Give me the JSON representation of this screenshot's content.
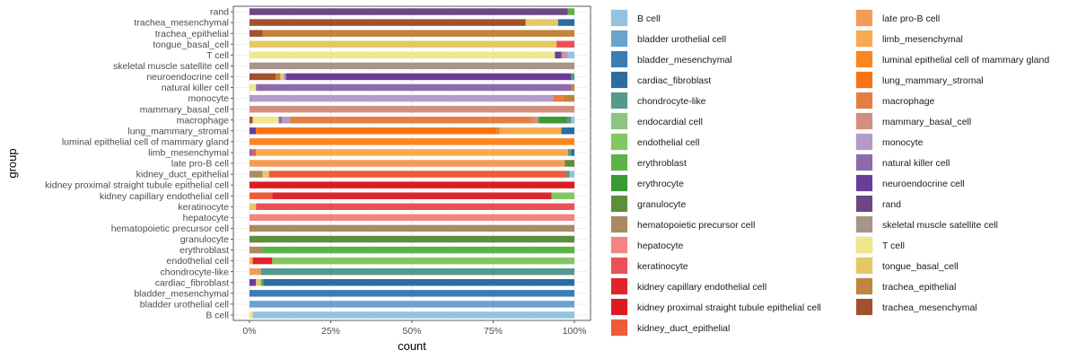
{
  "chart_data": {
    "type": "bar",
    "orientation": "horizontal",
    "stacked": "percent",
    "xlabel": "count",
    "ylabel": "group",
    "xlim": [
      0,
      1
    ],
    "x_ticks": [
      {
        "value": 0,
        "label": "0%"
      },
      {
        "value": 0.25,
        "label": "25%"
      },
      {
        "value": 0.5,
        "label": "50%"
      },
      {
        "value": 0.75,
        "label": "75%"
      },
      {
        "value": 1,
        "label": "100%"
      }
    ],
    "grid": true,
    "legend_position": "right",
    "categories": [
      "B cell",
      "bladder urothelial cell",
      "bladder_mesenchymal",
      "cardiac_fibroblast",
      "chondrocyte-like",
      "endothelial cell",
      "erythroblast",
      "granulocyte",
      "hematopoietic precursor cell",
      "hepatocyte",
      "keratinocyte",
      "kidney capillary endothelial cell",
      "kidney proximal straight tubule epithelial cell",
      "kidney_duct_epithelial",
      "late pro-B cell",
      "limb_mesenchymal",
      "luminal epithelial cell of mammary gland",
      "lung_mammary_stromal",
      "macrophage",
      "mammary_basal_cell",
      "monocyte",
      "natural killer cell",
      "neuroendocrine cell",
      "skeletal muscle satellite cell",
      "T cell",
      "tongue_basal_cell",
      "trachea_epithelial",
      "trachea_mesenchymal",
      "rand"
    ],
    "legend": [
      {
        "name": "B cell",
        "color": "#92c4df"
      },
      {
        "name": "bladder urothelial cell",
        "color": "#6aa3cd"
      },
      {
        "name": "bladder_mesenchymal",
        "color": "#3a7db5"
      },
      {
        "name": "cardiac_fibroblast",
        "color": "#2b6da2"
      },
      {
        "name": "chondrocyte-like",
        "color": "#55998e"
      },
      {
        "name": "endocardial cell",
        "color": "#8bc57e"
      },
      {
        "name": "endothelial cell",
        "color": "#82c75f"
      },
      {
        "name": "erythroblast",
        "color": "#5bb347"
      },
      {
        "name": "erythrocyte",
        "color": "#3a9a31"
      },
      {
        "name": "granulocyte",
        "color": "#5e8d3d"
      },
      {
        "name": "hematopoietic precursor cell",
        "color": "#a98a61"
      },
      {
        "name": "hepatocyte",
        "color": "#f48482"
      },
      {
        "name": "keratinocyte",
        "color": "#ea5157"
      },
      {
        "name": "kidney capillary endothelial cell",
        "color": "#e0242c"
      },
      {
        "name": "kidney proximal straight tubule epithelial cell",
        "color": "#dd1c22"
      },
      {
        "name": "kidney_duct_epithelial",
        "color": "#ef5a3c"
      },
      {
        "name": "late pro-B cell",
        "color": "#f59b58"
      },
      {
        "name": "limb_mesenchymal",
        "color": "#fba94f"
      },
      {
        "name": "luminal epithelial cell of mammary gland",
        "color": "#fb8620"
      },
      {
        "name": "lung_mammary_stromal",
        "color": "#f97311"
      },
      {
        "name": "macrophage",
        "color": "#e57f3f"
      },
      {
        "name": "mammary_basal_cell",
        "color": "#d28f80"
      },
      {
        "name": "monocyte",
        "color": "#b39bc8"
      },
      {
        "name": "natural killer cell",
        "color": "#8f69ad"
      },
      {
        "name": "neuroendocrine cell",
        "color": "#6a3d9a"
      },
      {
        "name": "rand",
        "color": "#6c4785"
      },
      {
        "name": "skeletal muscle satellite cell",
        "color": "#a99489"
      },
      {
        "name": "T cell",
        "color": "#f0e68c"
      },
      {
        "name": "tongue_basal_cell",
        "color": "#e4c865"
      },
      {
        "name": "trachea_epithelial",
        "color": "#c1843e"
      },
      {
        "name": "trachea_mesenchymal",
        "color": "#a0522d"
      }
    ],
    "bars": [
      {
        "group": "B cell",
        "segments": [
          [
            "T cell",
            0.01
          ],
          [
            "B cell",
            0.99
          ]
        ]
      },
      {
        "group": "bladder urothelial cell",
        "segments": [
          [
            "bladder urothelial cell",
            1.0
          ]
        ]
      },
      {
        "group": "bladder_mesenchymal",
        "segments": [
          [
            "bladder_mesenchymal",
            1.0
          ]
        ]
      },
      {
        "group": "cardiac_fibroblast",
        "segments": [
          [
            "neuroendocrine cell",
            0.02
          ],
          [
            "tongue_basal_cell",
            0.015
          ],
          [
            "erythroblast",
            0.007
          ],
          [
            "cardiac_fibroblast",
            0.958
          ]
        ]
      },
      {
        "group": "chondrocyte-like",
        "segments": [
          [
            "late pro-B cell",
            0.035
          ],
          [
            "chondrocyte-like",
            0.965
          ]
        ]
      },
      {
        "group": "endothelial cell",
        "segments": [
          [
            "limb_mesenchymal",
            0.01
          ],
          [
            "kidney capillary endothelial cell",
            0.06
          ],
          [
            "endothelial cell",
            0.93
          ]
        ]
      },
      {
        "group": "erythroblast",
        "segments": [
          [
            "hematopoietic precursor cell",
            0.04
          ],
          [
            "erythroblast",
            0.96
          ]
        ]
      },
      {
        "group": "granulocyte",
        "segments": [
          [
            "granulocyte",
            1.0
          ]
        ]
      },
      {
        "group": "hematopoietic precursor cell",
        "segments": [
          [
            "hematopoietic precursor cell",
            1.0
          ]
        ]
      },
      {
        "group": "hepatocyte",
        "segments": [
          [
            "hepatocyte",
            1.0
          ]
        ]
      },
      {
        "group": "keratinocyte",
        "segments": [
          [
            "tongue_basal_cell",
            0.02
          ],
          [
            "keratinocyte",
            0.98
          ]
        ]
      },
      {
        "group": "kidney capillary endothelial cell",
        "segments": [
          [
            "kidney_duct_epithelial",
            0.07
          ],
          [
            "kidney capillary endothelial cell",
            0.86
          ],
          [
            "endothelial cell",
            0.07
          ]
        ]
      },
      {
        "group": "kidney proximal straight tubule epithelial cell",
        "segments": [
          [
            "kidney proximal straight tubule epithelial cell",
            1.0
          ]
        ]
      },
      {
        "group": "kidney_duct_epithelial",
        "segments": [
          [
            "hematopoietic precursor cell",
            0.04
          ],
          [
            "tongue_basal_cell",
            0.02
          ],
          [
            "kidney_duct_epithelial",
            0.915
          ],
          [
            "chondrocyte-like",
            0.01
          ],
          [
            "B cell",
            0.015
          ]
        ]
      },
      {
        "group": "late pro-B cell",
        "segments": [
          [
            "late pro-B cell",
            0.97
          ],
          [
            "granulocyte",
            0.03
          ]
        ]
      },
      {
        "group": "limb_mesenchymal",
        "segments": [
          [
            "natural killer cell",
            0.01
          ],
          [
            "kidney_duct_epithelial",
            0.01
          ],
          [
            "limb_mesenchymal",
            0.96
          ],
          [
            "chondrocyte-like",
            0.01
          ],
          [
            "cardiac_fibroblast",
            0.01
          ]
        ]
      },
      {
        "group": "luminal epithelial cell of mammary gland",
        "segments": [
          [
            "luminal epithelial cell of mammary gland",
            1.0
          ]
        ]
      },
      {
        "group": "lung_mammary_stromal",
        "segments": [
          [
            "neuroendocrine cell",
            0.02
          ],
          [
            "lung_mammary_stromal",
            0.74
          ],
          [
            "macrophage",
            0.01
          ],
          [
            "limb_mesenchymal",
            0.19
          ],
          [
            "cardiac_fibroblast",
            0.04
          ]
        ]
      },
      {
        "group": "macrophage",
        "segments": [
          [
            "trachea_mesenchymal",
            0.01
          ],
          [
            "T cell",
            0.08
          ],
          [
            "natural killer cell",
            0.01
          ],
          [
            "monocyte",
            0.025
          ],
          [
            "macrophage",
            0.745
          ],
          [
            "mammary_basal_cell",
            0.02
          ],
          [
            "erythrocyte",
            0.09
          ],
          [
            "chondrocyte-like",
            0.01
          ],
          [
            "B cell",
            0.01
          ]
        ]
      },
      {
        "group": "mammary_basal_cell",
        "segments": [
          [
            "mammary_basal_cell",
            1.0
          ]
        ]
      },
      {
        "group": "monocyte",
        "segments": [
          [
            "monocyte",
            0.935
          ],
          [
            "macrophage",
            0.03
          ],
          [
            "trachea_epithelial",
            0.035
          ]
        ]
      },
      {
        "group": "natural killer cell",
        "segments": [
          [
            "T cell",
            0.02
          ],
          [
            "natural killer cell",
            0.97
          ],
          [
            "trachea_epithelial",
            0.01
          ]
        ]
      },
      {
        "group": "neuroendocrine cell",
        "segments": [
          [
            "trachea_mesenchymal",
            0.08
          ],
          [
            "trachea_epithelial",
            0.015
          ],
          [
            "tongue_basal_cell",
            0.01
          ],
          [
            "monocyte",
            0.007
          ],
          [
            "neuroendocrine cell",
            0.878
          ],
          [
            "chondrocyte-like",
            0.01
          ]
        ]
      },
      {
        "group": "skeletal muscle satellite cell",
        "segments": [
          [
            "skeletal muscle satellite cell",
            1.0
          ]
        ]
      },
      {
        "group": "T cell",
        "segments": [
          [
            "T cell",
            0.94
          ],
          [
            "neuroendocrine cell",
            0.02
          ],
          [
            "mammary_basal_cell",
            0.01
          ],
          [
            "monocyte",
            0.01
          ],
          [
            "B cell",
            0.02
          ]
        ]
      },
      {
        "group": "tongue_basal_cell",
        "segments": [
          [
            "tongue_basal_cell",
            0.945
          ],
          [
            "keratinocyte",
            0.055
          ]
        ]
      },
      {
        "group": "trachea_epithelial",
        "segments": [
          [
            "trachea_mesenchymal",
            0.04
          ],
          [
            "trachea_epithelial",
            0.96
          ]
        ]
      },
      {
        "group": "trachea_mesenchymal",
        "segments": [
          [
            "trachea_mesenchymal",
            0.85
          ],
          [
            "tongue_basal_cell",
            0.1
          ],
          [
            "cardiac_fibroblast",
            0.05
          ]
        ]
      },
      {
        "group": "rand",
        "segments": [
          [
            "rand",
            0.98
          ],
          [
            "erythroblast",
            0.02
          ]
        ]
      }
    ]
  }
}
